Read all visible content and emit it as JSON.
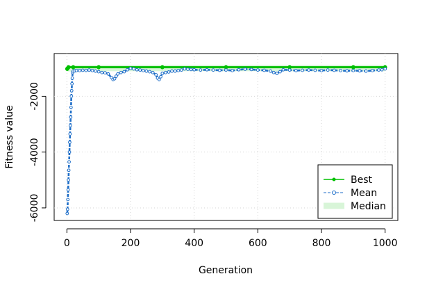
{
  "chart_data": {
    "type": "line",
    "title": "",
    "xlabel": "Generation",
    "ylabel": "Fitness value",
    "xlim": [
      -40,
      1040
    ],
    "ylim": [
      -6450,
      -470
    ],
    "x_ticks": [
      0,
      200,
      400,
      600,
      800,
      1000
    ],
    "y_ticks": [
      -6000,
      -4000,
      -2000
    ],
    "x_tick_labels": [
      "0",
      "200",
      "400",
      "600",
      "800",
      "1000"
    ],
    "y_tick_labels": [
      "-6000",
      "-4000",
      "-2000"
    ],
    "grid": true,
    "legend_position": "bottom-right",
    "series": [
      {
        "name": "Best",
        "color": "#00c000",
        "style": "solid-line-with-filled-points",
        "values": [
          [
            1,
            -1020
          ],
          [
            2,
            -1000
          ],
          [
            5,
            -960
          ],
          [
            20,
            -960
          ],
          [
            100,
            -960
          ],
          [
            300,
            -960
          ],
          [
            500,
            -960
          ],
          [
            700,
            -960
          ],
          [
            900,
            -960
          ],
          [
            1000,
            -960
          ]
        ]
      },
      {
        "name": "Mean",
        "color": "#1e6ec8",
        "style": "dashed-line-with-open-points",
        "values": [
          [
            1,
            -6200
          ],
          [
            2,
            -6050
          ],
          [
            3,
            -5700
          ],
          [
            4,
            -5350
          ],
          [
            5,
            -5000
          ],
          [
            6,
            -4650
          ],
          [
            7,
            -4350
          ],
          [
            8,
            -4000
          ],
          [
            9,
            -3650
          ],
          [
            10,
            -3350
          ],
          [
            11,
            -3050
          ],
          [
            12,
            -2750
          ],
          [
            13,
            -2400
          ],
          [
            14,
            -2000
          ],
          [
            15,
            -1800
          ],
          [
            16,
            -1550
          ],
          [
            17,
            -1350
          ],
          [
            18,
            -1150
          ],
          [
            20,
            -1100
          ],
          [
            25,
            -1090
          ],
          [
            30,
            -1080
          ],
          [
            40,
            -1080
          ],
          [
            50,
            -1070
          ],
          [
            60,
            -1075
          ],
          [
            70,
            -1060
          ],
          [
            80,
            -1080
          ],
          [
            90,
            -1100
          ],
          [
            100,
            -1120
          ],
          [
            110,
            -1150
          ],
          [
            120,
            -1160
          ],
          [
            130,
            -1200
          ],
          [
            140,
            -1330
          ],
          [
            145,
            -1400
          ],
          [
            150,
            -1370
          ],
          [
            155,
            -1280
          ],
          [
            160,
            -1200
          ],
          [
            170,
            -1150
          ],
          [
            180,
            -1120
          ],
          [
            190,
            -1050
          ],
          [
            200,
            -1000
          ],
          [
            210,
            -1020
          ],
          [
            220,
            -1050
          ],
          [
            230,
            -1060
          ],
          [
            240,
            -1080
          ],
          [
            250,
            -1100
          ],
          [
            260,
            -1120
          ],
          [
            270,
            -1150
          ],
          [
            280,
            -1230
          ],
          [
            285,
            -1350
          ],
          [
            290,
            -1400
          ],
          [
            295,
            -1300
          ],
          [
            300,
            -1180
          ],
          [
            310,
            -1150
          ],
          [
            320,
            -1130
          ],
          [
            330,
            -1100
          ],
          [
            340,
            -1100
          ],
          [
            350,
            -1080
          ],
          [
            360,
            -1060
          ],
          [
            370,
            -1020
          ],
          [
            380,
            -1030
          ],
          [
            390,
            -1040
          ],
          [
            400,
            -1050
          ],
          [
            420,
            -1060
          ],
          [
            440,
            -1050
          ],
          [
            460,
            -1060
          ],
          [
            480,
            -1070
          ],
          [
            500,
            -1060
          ],
          [
            520,
            -1080
          ],
          [
            540,
            -1050
          ],
          [
            560,
            -1030
          ],
          [
            580,
            -1040
          ],
          [
            600,
            -1060
          ],
          [
            620,
            -1070
          ],
          [
            640,
            -1100
          ],
          [
            650,
            -1150
          ],
          [
            660,
            -1180
          ],
          [
            670,
            -1120
          ],
          [
            680,
            -1050
          ],
          [
            700,
            -1060
          ],
          [
            720,
            -1080
          ],
          [
            740,
            -1070
          ],
          [
            760,
            -1060
          ],
          [
            780,
            -1070
          ],
          [
            800,
            -1080
          ],
          [
            820,
            -1060
          ],
          [
            840,
            -1070
          ],
          [
            860,
            -1080
          ],
          [
            880,
            -1090
          ],
          [
            900,
            -1080
          ],
          [
            920,
            -1090
          ],
          [
            940,
            -1100
          ],
          [
            960,
            -1080
          ],
          [
            980,
            -1060
          ],
          [
            990,
            -1050
          ],
          [
            1000,
            -1020
          ]
        ]
      },
      {
        "name": "Median",
        "color": "#d8f5d8",
        "style": "wide-light-band",
        "values": [
          [
            1,
            -1000
          ],
          [
            100,
            -990
          ],
          [
            300,
            -990
          ],
          [
            500,
            -990
          ],
          [
            700,
            -990
          ],
          [
            900,
            -990
          ],
          [
            1000,
            -990
          ]
        ]
      }
    ]
  }
}
